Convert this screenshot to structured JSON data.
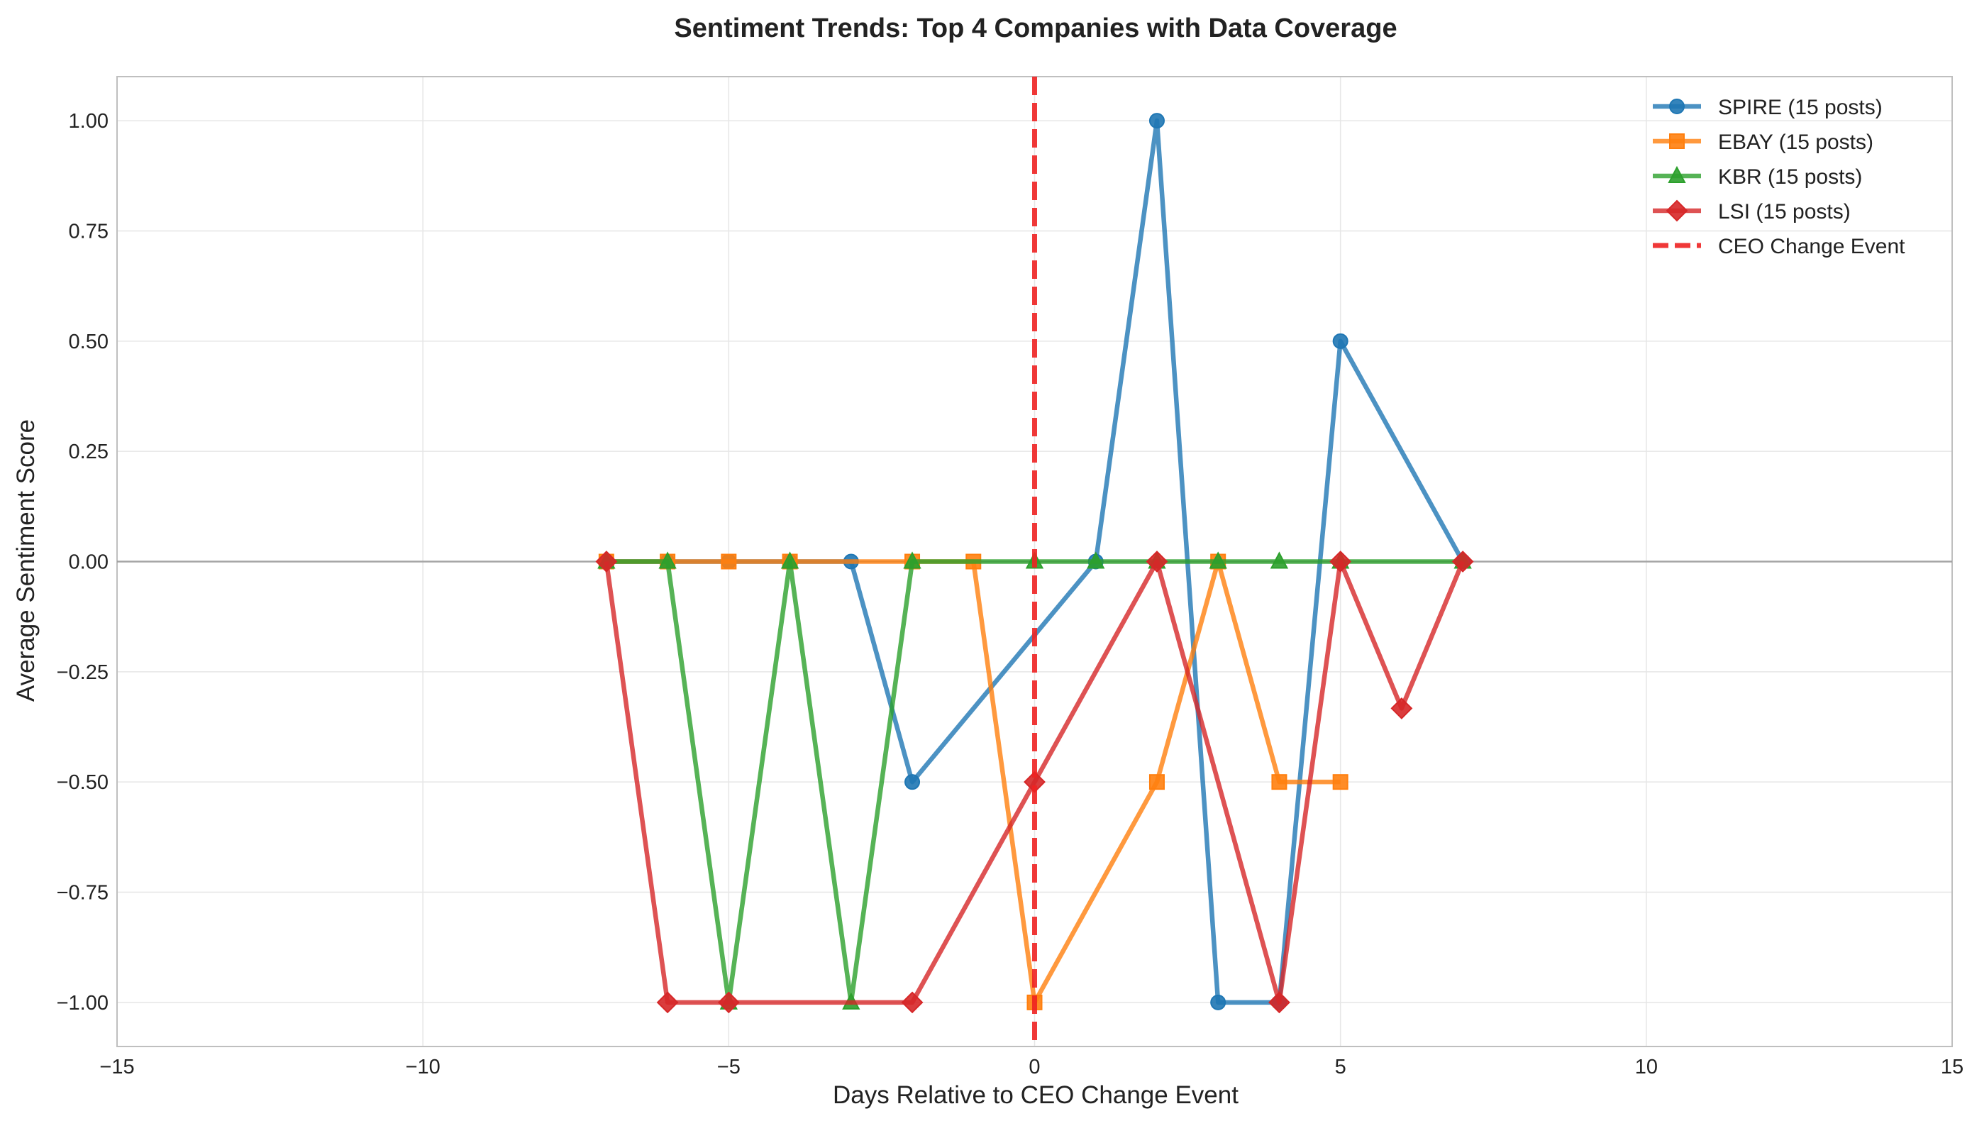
{
  "chart_data": {
    "type": "line",
    "title": "Sentiment Trends: Top 4 Companies with Data Coverage",
    "xlabel": "Days Relative to CEO Change Event",
    "ylabel": "Average Sentiment Score",
    "xlim": [
      -15,
      15
    ],
    "ylim": [
      -1.1,
      1.1
    ],
    "xticks": [
      -15,
      -10,
      -5,
      0,
      5,
      10,
      15
    ],
    "xtick_labels": [
      "−15",
      "−10",
      "−5",
      "0",
      "5",
      "10",
      "15"
    ],
    "yticks": [
      -1.0,
      -0.75,
      -0.5,
      -0.25,
      0.0,
      0.25,
      0.5,
      0.75,
      1.0
    ],
    "ytick_labels": [
      "−1.00",
      "−0.75",
      "−0.50",
      "−0.25",
      "0.00",
      "0.25",
      "0.50",
      "0.75",
      "1.00"
    ],
    "grid": true,
    "zero_line": 0,
    "legend_position": "top-right",
    "series": [
      {
        "name": "SPIRE (15 posts)",
        "color": "#1f77b4",
        "marker": "circle",
        "x": [
          -7,
          -6,
          -5,
          -4,
          -3,
          -2,
          1,
          2,
          3,
          4,
          5,
          7
        ],
        "y": [
          0,
          0,
          0,
          0,
          0,
          -0.5,
          0,
          1.0,
          -1.0,
          -1.0,
          0.5,
          0
        ]
      },
      {
        "name": "EBAY (15 posts)",
        "color": "#ff7f0e",
        "marker": "square",
        "x": [
          -7,
          -6,
          -5,
          -4,
          -2,
          -1,
          0,
          2,
          3,
          4,
          5
        ],
        "y": [
          0,
          0,
          0,
          0,
          0,
          0,
          -1.0,
          -0.5,
          0,
          -0.5,
          -0.5
        ]
      },
      {
        "name": "KBR (15 posts)",
        "color": "#2ca02c",
        "marker": "triangle",
        "x": [
          -7,
          -6,
          -5,
          -4,
          -3,
          -2,
          0,
          1,
          2,
          3,
          4,
          5,
          7
        ],
        "y": [
          0,
          0,
          -1.0,
          0,
          -1.0,
          0,
          0,
          0,
          0,
          0,
          0,
          0,
          0
        ]
      },
      {
        "name": "LSI (15 posts)",
        "color": "#d62728",
        "marker": "diamond",
        "x": [
          -7,
          -6,
          -5,
          -2,
          0,
          2,
          4,
          5,
          6,
          7
        ],
        "y": [
          0,
          -1.0,
          -1.0,
          -1.0,
          -0.5,
          0,
          -1.0,
          0,
          -0.333,
          0
        ]
      }
    ],
    "event_line": {
      "x": 0,
      "label": "CEO Change Event",
      "color": "#ee2222"
    }
  }
}
